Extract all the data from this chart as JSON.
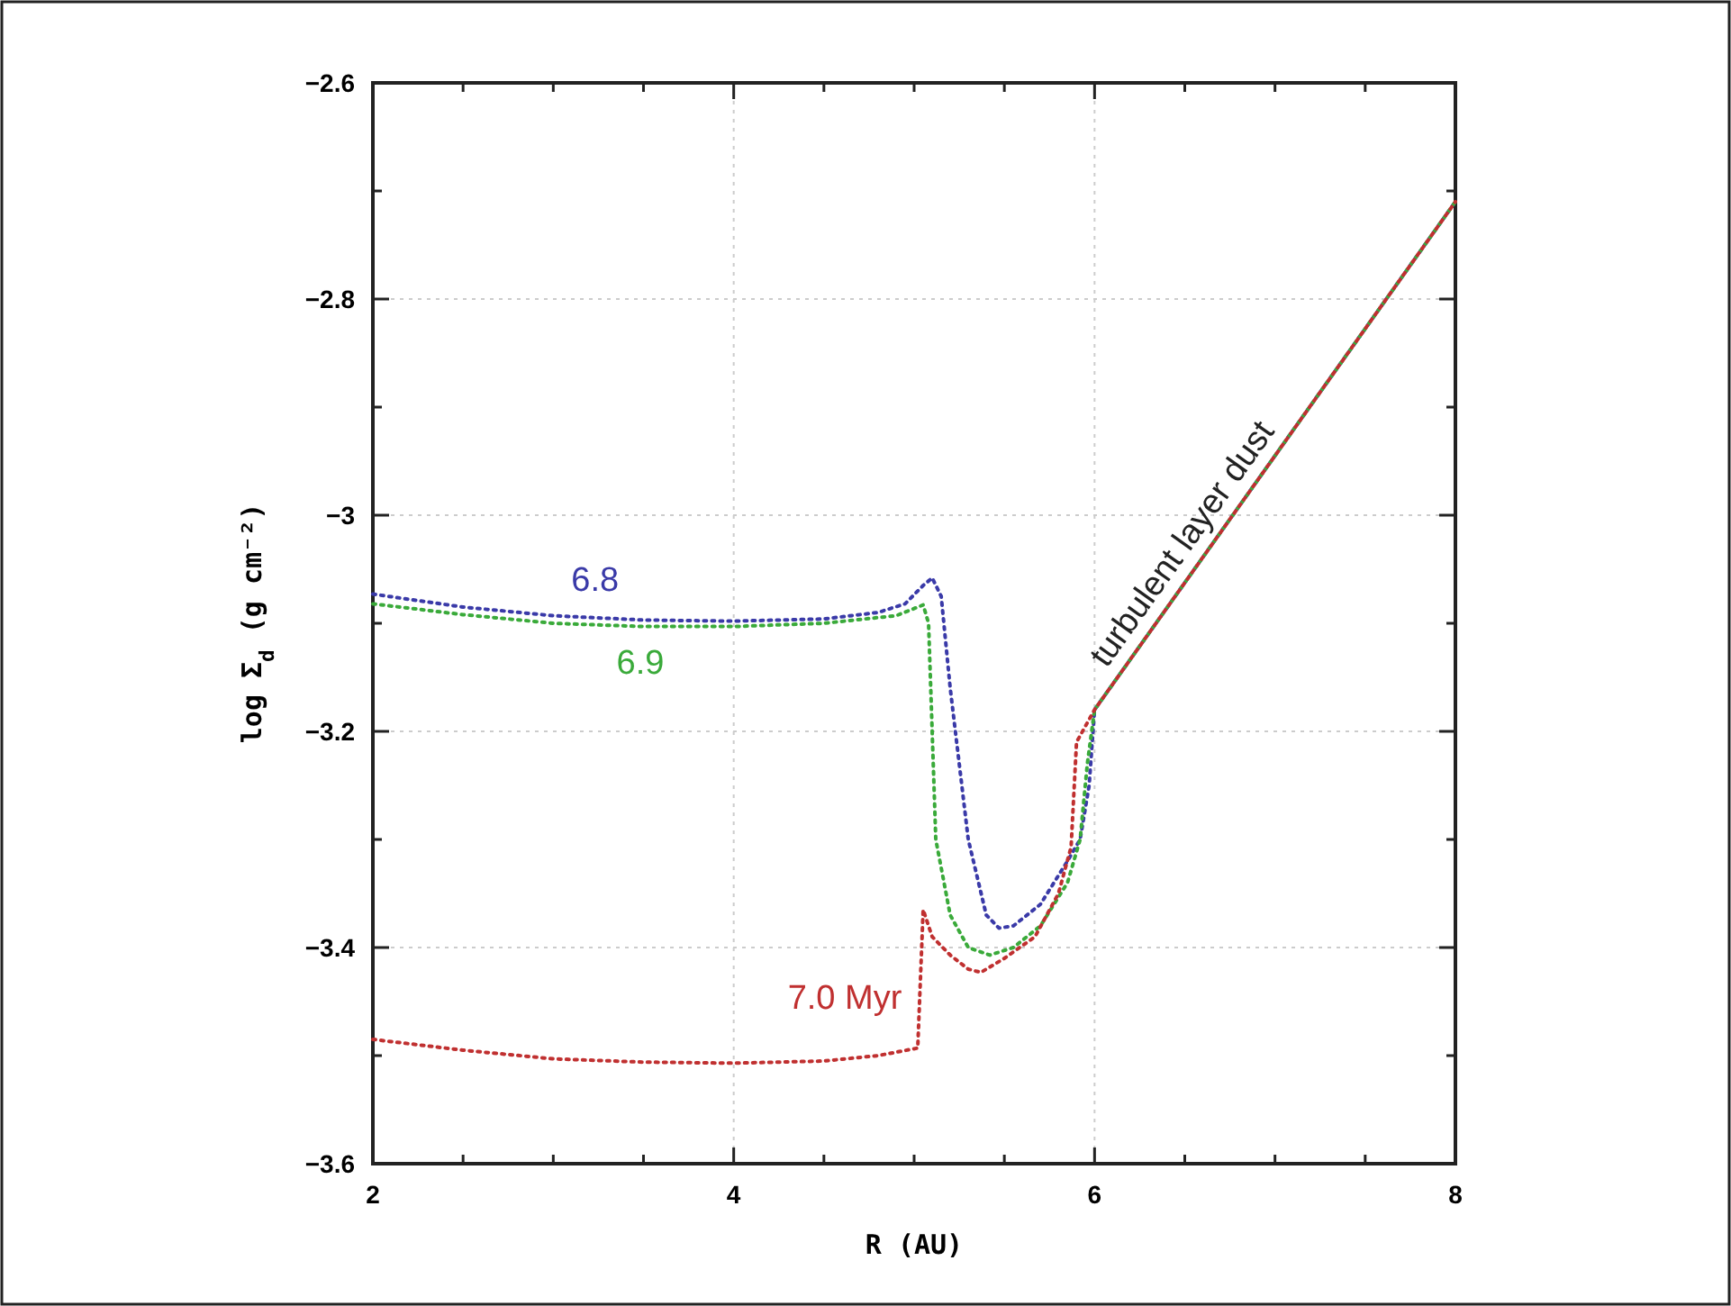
{
  "chart_data": {
    "type": "line",
    "xlabel": "R (AU)",
    "ylabel": "log Σ$_{d}$  (g cm⁻²)",
    "x": [
      2,
      2.5,
      3,
      3.5,
      4,
      4.5,
      4.8,
      4.95,
      5.05,
      5.1,
      5.15,
      5.2,
      5.3,
      5.4,
      5.47,
      5.55,
      5.7,
      5.85,
      5.92,
      5.97,
      6,
      8
    ],
    "series": [
      {
        "name": "6.8",
        "color": "#3a3aa8",
        "values": [
          -3.073,
          -3.085,
          -3.093,
          -3.097,
          -3.098,
          -3.096,
          -3.09,
          -3.082,
          -3.065,
          -3.058,
          -3.075,
          -3.16,
          -3.3,
          -3.37,
          -3.382,
          -3.38,
          -3.36,
          -3.32,
          -3.3,
          -3.25,
          -3.18,
          -2.71
        ]
      },
      {
        "name": "6.9",
        "color": "#3aaa3a",
        "x": [
          2,
          2.5,
          3,
          3.5,
          4,
          4.5,
          4.9,
          5.05,
          5.08,
          5.12,
          5.2,
          5.3,
          5.42,
          5.55,
          5.7,
          5.85,
          5.92,
          5.96,
          6,
          8
        ],
        "values": [
          -3.082,
          -3.092,
          -3.1,
          -3.103,
          -3.103,
          -3.1,
          -3.093,
          -3.083,
          -3.1,
          -3.3,
          -3.37,
          -3.4,
          -3.407,
          -3.4,
          -3.38,
          -3.34,
          -3.3,
          -3.23,
          -3.18,
          -2.71
        ]
      },
      {
        "name": "7.0 Myr",
        "color": "#c03030",
        "x": [
          2,
          2.5,
          3,
          3.5,
          4,
          4.5,
          4.8,
          5.02,
          5.05,
          5.1,
          5.2,
          5.3,
          5.37,
          5.5,
          5.67,
          5.8,
          5.87,
          5.9,
          6,
          8
        ],
        "values": [
          -3.485,
          -3.495,
          -3.503,
          -3.506,
          -3.507,
          -3.505,
          -3.5,
          -3.493,
          -3.365,
          -3.39,
          -3.407,
          -3.42,
          -3.423,
          -3.41,
          -3.39,
          -3.35,
          -3.307,
          -3.21,
          -3.18,
          -2.71
        ]
      }
    ],
    "annotations": [
      {
        "text": "turbulent layer dust",
        "x": 6.6,
        "y": -3.04
      }
    ],
    "xlim": [
      2,
      8
    ],
    "xticks": [
      2,
      {
        "value": 2.5,
        "label": null
      },
      {
        "value": 3,
        "label": null
      },
      {
        "value": 3.5,
        "label": null
      },
      4,
      {
        "value": 4.5,
        "label": null
      },
      {
        "value": 5,
        "label": null
      },
      {
        "value": 5.5,
        "label": null
      },
      6,
      {
        "value": 6.5,
        "label": null
      },
      {
        "value": 7,
        "label": null
      },
      {
        "value": 7.5,
        "label": null
      },
      8
    ],
    "ylim": [
      -3.6,
      -2.6
    ],
    "yticks": [
      {
        "value": -3.6,
        "label": "−3.6"
      },
      {
        "value": -3.5,
        "label": null
      },
      {
        "value": -3.4,
        "label": "−3.4"
      },
      {
        "value": -3.3,
        "label": null
      },
      {
        "value": -3.2,
        "label": "−3.2"
      },
      {
        "value": -3.1,
        "label": null
      },
      {
        "value": -3,
        "label": "−3"
      },
      {
        "value": -2.9,
        "label": null
      },
      {
        "value": -2.8,
        "label": "−2.8"
      },
      {
        "value": -2.7,
        "label": null
      },
      {
        "value": -2.6,
        "label": "−2.6"
      }
    ],
    "grid": true,
    "line_style": "dotted",
    "marker": "none"
  }
}
